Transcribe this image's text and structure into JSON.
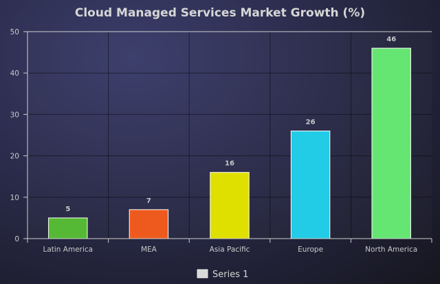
{
  "chart_data": {
    "type": "bar",
    "title": "Cloud Managed Services Market Growth (%)",
    "xlabel": "",
    "ylabel": "",
    "categories": [
      "Latin America",
      "MEA",
      "Asia Pacific",
      "Europe",
      "North America"
    ],
    "series": [
      {
        "name": "Series 1",
        "values": [
          5,
          7,
          16,
          26,
          46
        ]
      }
    ],
    "bar_colors": [
      "#56b935",
      "#ee5a1d",
      "#e0e000",
      "#22cbe6",
      "#65e673"
    ],
    "ylim": [
      0,
      50
    ],
    "yticks": [
      0,
      10,
      20,
      30,
      40,
      50
    ],
    "grid": true,
    "legend_position": "bottom",
    "legend_swatch_color": "#d9d9d9"
  }
}
